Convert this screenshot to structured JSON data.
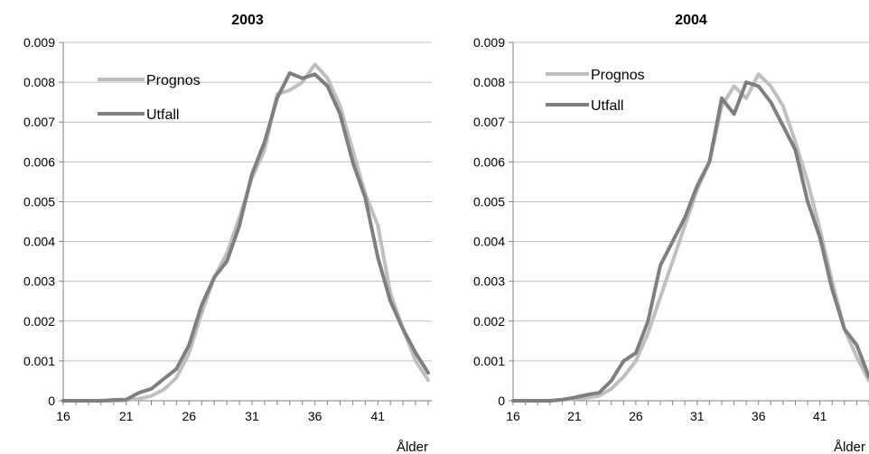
{
  "chart_data": [
    {
      "type": "line",
      "title": "2003",
      "xlabel": "Ålder",
      "ylabel": "",
      "xlim": [
        16,
        45
      ],
      "ylim": [
        0,
        0.009
      ],
      "xticks": [
        "16",
        "21",
        "26",
        "31",
        "36",
        "41"
      ],
      "yticks": [
        "0",
        "0.001",
        "0.002",
        "0.003",
        "0.004",
        "0.005",
        "0.006",
        "0.007",
        "0.008",
        "0.009"
      ],
      "grid": "horizontal",
      "legend_position": "top-left",
      "x": [
        16,
        17,
        18,
        19,
        20,
        21,
        22,
        23,
        24,
        25,
        26,
        27,
        28,
        29,
        30,
        31,
        32,
        33,
        34,
        35,
        36,
        37,
        38,
        39,
        40,
        41,
        42,
        43,
        44,
        45
      ],
      "series": [
        {
          "name": "Prognos",
          "color": "#bfbfbf",
          "values": [
            0,
            0,
            0,
            0,
            0,
            1e-05,
            5e-05,
            0.00012,
            0.00028,
            0.00058,
            0.0012,
            0.0022,
            0.0031,
            0.0037,
            0.0046,
            0.0056,
            0.0063,
            0.0077,
            0.0078,
            0.008,
            0.00845,
            0.0081,
            0.0074,
            0.0063,
            0.0052,
            0.0044,
            0.0027,
            0.0018,
            0.001,
            0.00052
          ]
        },
        {
          "name": "Utfall",
          "color": "#7f7f7f",
          "values": [
            0,
            0,
            0,
            0,
            2e-05,
            3e-05,
            0.0002,
            0.0003,
            0.00055,
            0.0008,
            0.0014,
            0.0024,
            0.0031,
            0.0035,
            0.0044,
            0.0057,
            0.0065,
            0.0076,
            0.00823,
            0.0081,
            0.0082,
            0.0079,
            0.0072,
            0.006,
            0.0051,
            0.0036,
            0.0025,
            0.0018,
            0.0012,
            0.0007
          ]
        }
      ]
    },
    {
      "type": "line",
      "title": "2004",
      "xlabel": "Ålder",
      "ylabel": "",
      "xlim": [
        16,
        45
      ],
      "ylim": [
        0,
        0.009
      ],
      "xticks": [
        "16",
        "21",
        "26",
        "31",
        "36",
        "41"
      ],
      "yticks": [
        "0",
        "0.001",
        "0.002",
        "0.003",
        "0.004",
        "0.005",
        "0.006",
        "0.007",
        "0.008",
        "0.009"
      ],
      "grid": "horizontal",
      "legend_position": "top-left",
      "x": [
        16,
        17,
        18,
        19,
        20,
        21,
        22,
        23,
        24,
        25,
        26,
        27,
        28,
        29,
        30,
        31,
        32,
        33,
        34,
        35,
        36,
        37,
        38,
        39,
        40,
        41,
        42,
        43,
        44,
        45
      ],
      "series": [
        {
          "name": "Prognos",
          "color": "#bfbfbf",
          "values": [
            0,
            0,
            0,
            0,
            2e-05,
            4e-05,
            7e-05,
            0.00012,
            0.0003,
            0.0006,
            0.001,
            0.0017,
            0.0026,
            0.0035,
            0.0044,
            0.0053,
            0.006,
            0.0074,
            0.0079,
            0.0076,
            0.0082,
            0.0079,
            0.0074,
            0.0065,
            0.0055,
            0.0043,
            0.003,
            0.0018,
            0.0011,
            0.0005
          ]
        },
        {
          "name": "Utfall",
          "color": "#7f7f7f",
          "values": [
            0,
            0,
            0,
            0,
            3e-05,
            8e-05,
            0.00015,
            0.0002,
            0.0005,
            0.001,
            0.0012,
            0.002,
            0.0034,
            0.004,
            0.0046,
            0.0054,
            0.006,
            0.0076,
            0.0072,
            0.008,
            0.0079,
            0.0075,
            0.0069,
            0.0063,
            0.005,
            0.0041,
            0.0028,
            0.0018,
            0.0014,
            0.0006
          ]
        }
      ]
    }
  ]
}
